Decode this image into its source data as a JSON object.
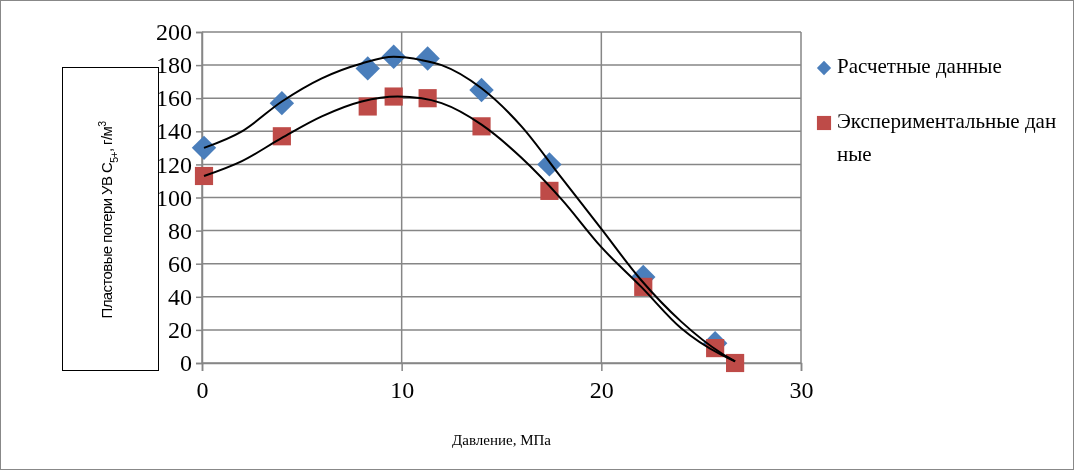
{
  "chart_data": {
    "type": "scatter",
    "xlabel": "Давление, МПа",
    "ylabel": "Пластовые потери УВ C$_{5+}$, г/м$^{3}$",
    "xlim": [
      0,
      30
    ],
    "xticks": [
      0,
      10,
      20,
      30
    ],
    "ylim": [
      0,
      200
    ],
    "yticks": [
      0,
      20,
      40,
      60,
      80,
      100,
      120,
      140,
      160,
      180,
      200
    ],
    "grid": true,
    "legend": "right",
    "series": [
      {
        "name": "Расчетные данные",
        "marker": "diamond",
        "color": "#4a7ebb",
        "x": [
          0.1,
          4.0,
          8.3,
          9.6,
          11.3,
          14.0,
          17.4,
          22.1,
          25.7
        ],
        "values": [
          130,
          157,
          178,
          185,
          184,
          165,
          120,
          52,
          12
        ]
      },
      {
        "name": "Экспериментальные данные",
        "marker": "square",
        "color": "#be4b48",
        "x": [
          0.1,
          4.0,
          8.3,
          9.6,
          11.3,
          14.0,
          17.4,
          22.1,
          25.7,
          26.7
        ],
        "values": [
          113,
          137,
          155,
          161,
          160,
          143,
          104,
          46,
          9,
          0
        ]
      },
      {
        "type": "line",
        "marker": "none",
        "color": "#000000",
        "x": [
          0.1,
          2,
          4,
          6,
          8,
          9.6,
          11,
          12,
          14,
          16,
          18,
          20,
          22,
          24,
          26,
          26.7
        ],
        "values": [
          130,
          140,
          158,
          172,
          181,
          185,
          183,
          180,
          166,
          143,
          112,
          81,
          50,
          25,
          6,
          1
        ]
      },
      {
        "type": "line",
        "marker": "none",
        "color": "#000000",
        "x": [
          0.1,
          2,
          4,
          6,
          8,
          9.8,
          11,
          12,
          14,
          16,
          18,
          20,
          22,
          24,
          26,
          26.7
        ],
        "values": [
          113,
          122,
          136,
          149,
          158,
          161,
          160,
          157,
          144,
          124,
          99,
          70,
          46,
          21,
          5,
          1
        ]
      }
    ]
  }
}
